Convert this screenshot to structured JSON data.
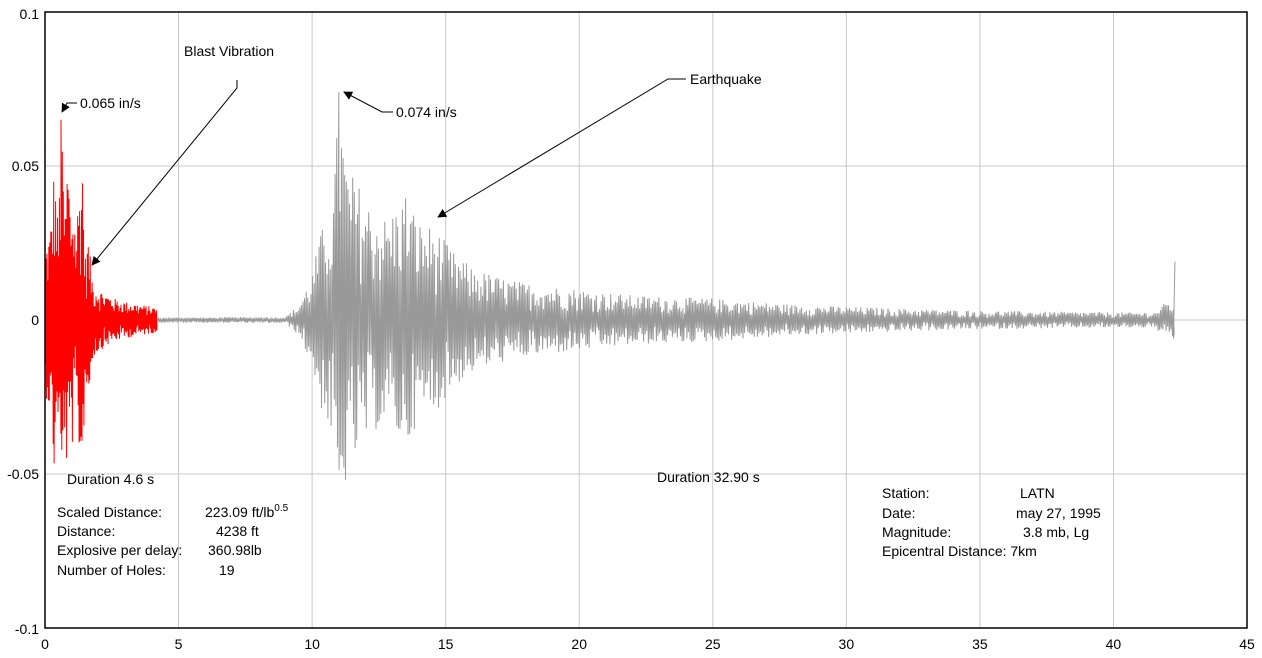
{
  "chart_data": {
    "type": "line",
    "title": "",
    "xlabel": "",
    "ylabel": "",
    "xlim": [
      0,
      45
    ],
    "ylim": [
      -0.1,
      0.1
    ],
    "x_ticks": [
      0,
      5,
      10,
      15,
      20,
      25,
      30,
      35,
      40,
      45
    ],
    "x_tick_labels": [
      "0",
      "5",
      "10",
      "15",
      "20",
      "25",
      "30",
      "35",
      "40",
      "45"
    ],
    "y_ticks": [
      0.1,
      0.05,
      0,
      -0.05,
      -0.1
    ],
    "y_tick_labels": [
      "0.1",
      "0.05",
      "0",
      "-0.05",
      "-0.1"
    ],
    "grid": true,
    "series": [
      {
        "color": "#ff0000",
        "x_range": [
          0,
          4.2
        ],
        "envelope": [
          [
            0.0,
            0.024
          ],
          [
            0.2,
            0.03
          ],
          [
            0.35,
            0.052
          ],
          [
            0.5,
            0.03
          ],
          [
            0.6,
            0.065
          ],
          [
            0.75,
            0.035
          ],
          [
            0.85,
            0.058
          ],
          [
            0.95,
            0.037
          ],
          [
            1.05,
            0.042
          ],
          [
            1.15,
            0.03
          ],
          [
            1.4,
            0.056
          ],
          [
            1.5,
            0.02
          ],
          [
            1.6,
            0.028
          ],
          [
            1.8,
            0.012
          ],
          [
            2.2,
            0.009
          ],
          [
            2.6,
            0.007
          ],
          [
            3.0,
            0.006
          ],
          [
            3.6,
            0.005
          ],
          [
            4.2,
            0.004
          ]
        ],
        "peak": {
          "x": 0.6,
          "y": 0.065
        }
      },
      {
        "color": "#999999",
        "x_range": [
          4.2,
          42.3
        ],
        "envelope": [
          [
            4.2,
            0.0008
          ],
          [
            9.0,
            0.001
          ],
          [
            9.5,
            0.005
          ],
          [
            10.0,
            0.015
          ],
          [
            10.3,
            0.028
          ],
          [
            10.8,
            0.04
          ],
          [
            11.0,
            0.074
          ],
          [
            11.3,
            0.05
          ],
          [
            11.7,
            0.045
          ],
          [
            12.2,
            0.037
          ],
          [
            12.8,
            0.033
          ],
          [
            13.5,
            0.042
          ],
          [
            14.0,
            0.032
          ],
          [
            14.6,
            0.03
          ],
          [
            15.3,
            0.022
          ],
          [
            16.0,
            0.017
          ],
          [
            17.0,
            0.014
          ],
          [
            18.0,
            0.012
          ],
          [
            20.0,
            0.01
          ],
          [
            22.0,
            0.008
          ],
          [
            25.0,
            0.007
          ],
          [
            28.0,
            0.005
          ],
          [
            31.0,
            0.004
          ],
          [
            35.0,
            0.003
          ],
          [
            40.0,
            0.0025
          ],
          [
            41.5,
            0.0025
          ],
          [
            42.0,
            0.006
          ]
        ],
        "peak": {
          "x": 11.0,
          "y": 0.074
        },
        "end_rise": {
          "x": 42.3,
          "y": 0.019
        }
      }
    ],
    "annotations": [
      {
        "text": "0.065 in/s",
        "x": 0.6,
        "y": 0.065
      },
      {
        "text": "Blast Vibration",
        "x": 1.7,
        "y": 0.017
      },
      {
        "text": "0.074 in/s",
        "x": 11.0,
        "y": 0.074
      },
      {
        "text": "Earthquake",
        "x": 14.6,
        "y": 0.033
      },
      {
        "text": "Duration 4.6 s"
      },
      {
        "text": "Duration 32.90 s"
      }
    ]
  },
  "annotations": {
    "peak_blast": "0.065 in/s",
    "blast_label": "Blast Vibration",
    "peak_quake": "0.074 in/s",
    "quake_label": "Earthquake",
    "duration_blast": "Duration 4.6 s",
    "duration_quake": "Duration 32.90 s"
  },
  "blast_info": {
    "scaled_label": "Scaled Distance:",
    "scaled_value": "223.09 ft/lb",
    "scaled_exp": "0.5",
    "distance_label": "Distance:",
    "distance_value": "4238 ft",
    "explosive_label": "Explosive per delay:",
    "explosive_value": "360.98lb",
    "holes_label": "Number of Holes:",
    "holes_value": "19"
  },
  "quake_info": {
    "station_label": "Station:",
    "station_value": "LATN",
    "date_label": "Date:",
    "date_value": "may 27, 1995",
    "magnitude_label": "Magnitude:",
    "magnitude_value": "3.8 mb, Lg",
    "epicentral": "Epicentral Distance: 7km"
  },
  "colors": {
    "blast": "#ff0000",
    "quake": "#999999",
    "grid": "#c8c8c8",
    "frame": "#000000"
  }
}
